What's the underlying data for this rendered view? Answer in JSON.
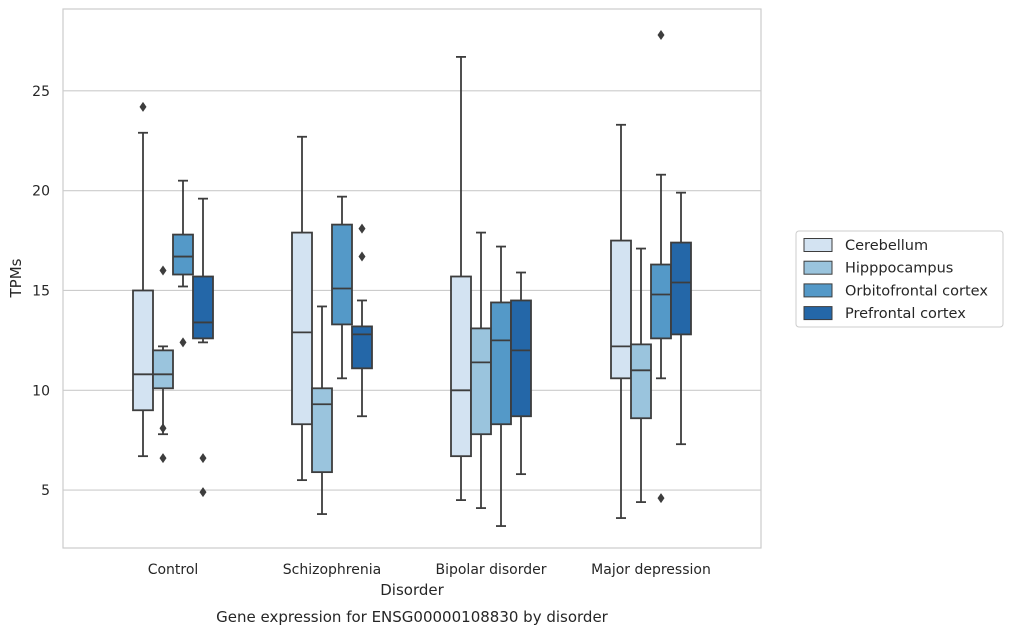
{
  "caption": "Gene expression for ENSG00000108830 by disorder",
  "chart_data": {
    "type": "boxplot",
    "xlabel": "Disorder",
    "ylabel": "TPMs",
    "ylim": [
      2.1,
      29.1
    ],
    "yticks": [
      5,
      10,
      15,
      20,
      25
    ],
    "grid": "horizontal",
    "legend_position": "right",
    "categories": [
      "Control",
      "Schizophrenia",
      "Bipolar disorder",
      "Major depression"
    ],
    "series": [
      {
        "name": "Cerebellum",
        "color": "#d3e3f2",
        "boxes": [
          {
            "whislo": 6.7,
            "q1": 9.0,
            "med": 10.8,
            "q3": 15.0,
            "whishi": 22.9,
            "fliers": [
              24.2
            ]
          },
          {
            "whislo": 5.5,
            "q1": 8.3,
            "med": 12.9,
            "q3": 17.9,
            "whishi": 22.7,
            "fliers": []
          },
          {
            "whislo": 4.5,
            "q1": 6.7,
            "med": 10.0,
            "q3": 15.7,
            "whishi": 26.7,
            "fliers": []
          },
          {
            "whislo": 3.6,
            "q1": 10.6,
            "med": 12.2,
            "q3": 17.5,
            "whishi": 23.3,
            "fliers": []
          }
        ]
      },
      {
        "name": "Hipppocampus",
        "color": "#9ac4dd",
        "boxes": [
          {
            "whislo": 7.8,
            "q1": 10.1,
            "med": 10.8,
            "q3": 12.0,
            "whishi": 12.2,
            "fliers": [
              6.6,
              8.1,
              16.0
            ]
          },
          {
            "whislo": 3.8,
            "q1": 5.9,
            "med": 9.3,
            "q3": 10.1,
            "whishi": 14.2,
            "fliers": []
          },
          {
            "whislo": 4.1,
            "q1": 7.8,
            "med": 11.4,
            "q3": 13.1,
            "whishi": 17.9,
            "fliers": []
          },
          {
            "whislo": 4.4,
            "q1": 8.6,
            "med": 11.0,
            "q3": 12.3,
            "whishi": 17.1,
            "fliers": []
          }
        ]
      },
      {
        "name": "Orbitofrontal cortex",
        "color": "#5499c8",
        "boxes": [
          {
            "whislo": 15.2,
            "q1": 15.8,
            "med": 16.7,
            "q3": 17.8,
            "whishi": 20.5,
            "fliers": [
              12.4
            ]
          },
          {
            "whislo": 10.6,
            "q1": 13.3,
            "med": 15.1,
            "q3": 18.3,
            "whishi": 19.7,
            "fliers": []
          },
          {
            "whislo": 3.2,
            "q1": 8.3,
            "med": 12.5,
            "q3": 14.4,
            "whishi": 17.2,
            "fliers": []
          },
          {
            "whislo": 10.6,
            "q1": 12.6,
            "med": 14.8,
            "q3": 16.3,
            "whishi": 20.8,
            "fliers": [
              4.6,
              27.8
            ]
          }
        ]
      },
      {
        "name": "Prefrontal cortex",
        "color": "#2467a8",
        "boxes": [
          {
            "whislo": 12.4,
            "q1": 12.6,
            "med": 13.4,
            "q3": 15.7,
            "whishi": 19.6,
            "fliers": [
              4.9,
              6.6
            ]
          },
          {
            "whislo": 8.7,
            "q1": 11.1,
            "med": 12.8,
            "q3": 13.2,
            "whishi": 14.5,
            "fliers": [
              16.7,
              18.1
            ]
          },
          {
            "whislo": 5.8,
            "q1": 8.7,
            "med": 12.0,
            "q3": 14.5,
            "whishi": 15.9,
            "fliers": []
          },
          {
            "whislo": 7.3,
            "q1": 12.8,
            "med": 15.4,
            "q3": 17.4,
            "whishi": 19.9,
            "fliers": []
          }
        ]
      }
    ]
  }
}
